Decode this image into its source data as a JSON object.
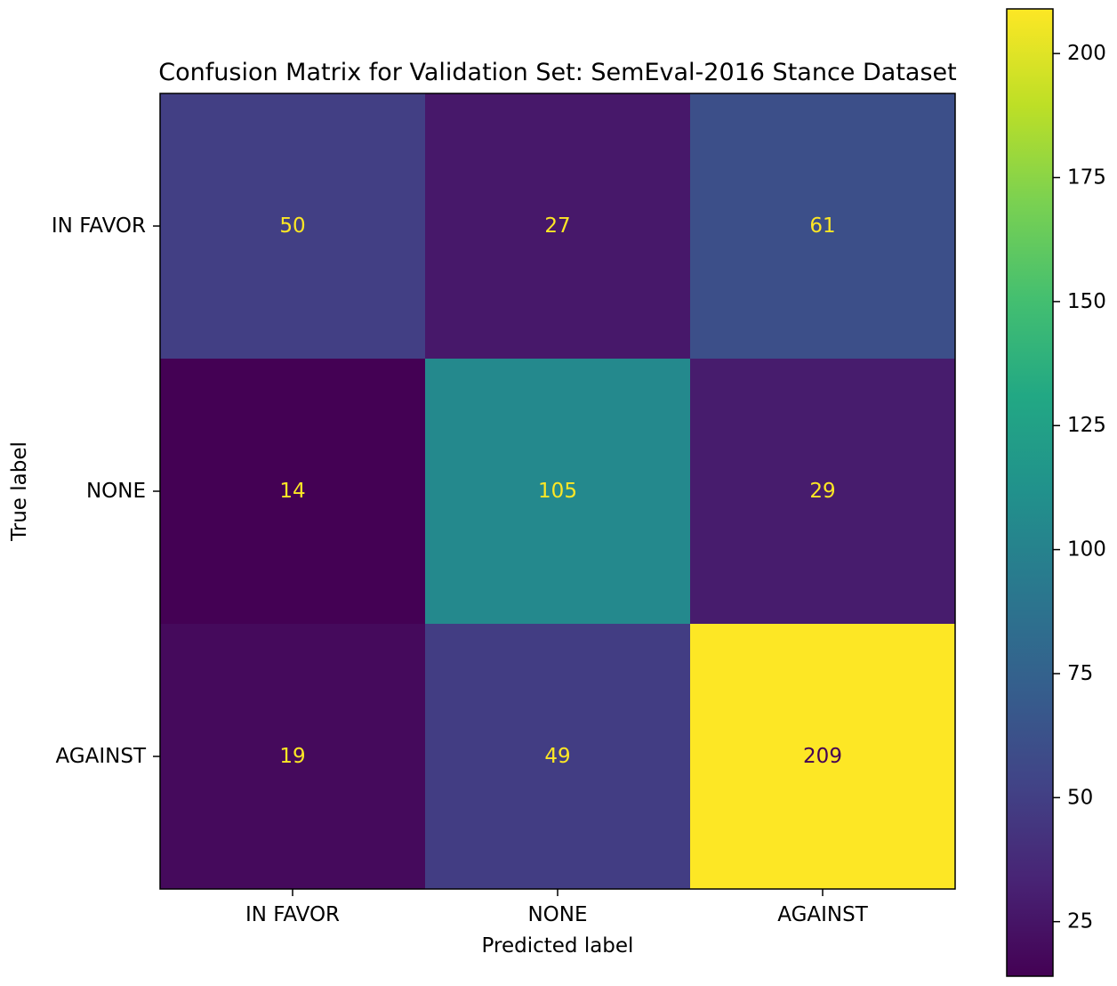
{
  "chart_data": {
    "type": "heatmap",
    "title": "Confusion Matrix for Validation Set: SemEval-2016 Stance Dataset",
    "xlabel": "Predicted label",
    "ylabel": "True label",
    "x_categories": [
      "IN FAVOR",
      "NONE",
      "AGAINST"
    ],
    "y_categories": [
      "IN FAVOR",
      "NONE",
      "AGAINST"
    ],
    "values": [
      [
        50,
        27,
        61
      ],
      [
        14,
        105,
        29
      ],
      [
        19,
        49,
        209
      ]
    ],
    "colormap": "viridis",
    "color_range": [
      14,
      209
    ],
    "colorbar_ticks": [
      25,
      50,
      75,
      100,
      125,
      150,
      175,
      200
    ],
    "text_colors": {
      "light": "#fde725",
      "dark": "#440154"
    },
    "grid": false
  }
}
